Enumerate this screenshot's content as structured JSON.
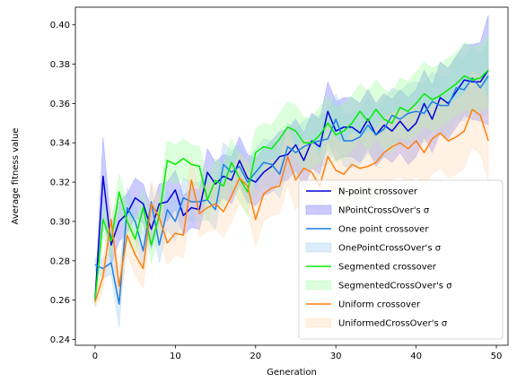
{
  "chart_data": {
    "type": "line",
    "xlabel": "Generation",
    "ylabel": "Average fitness value",
    "xlim": [
      -2.45,
      51.45
    ],
    "ylim": [
      0.237,
      0.409
    ],
    "xticks": [
      0,
      10,
      20,
      30,
      40,
      50
    ],
    "yticks": [
      0.24,
      0.26,
      0.28,
      0.3,
      0.32,
      0.34,
      0.36,
      0.38,
      0.4
    ],
    "ytick_labels": [
      "0.24",
      "0.26",
      "0.28",
      "0.30",
      "0.32",
      "0.34",
      "0.36",
      "0.38",
      "0.40"
    ],
    "xtick_labels": [
      "0",
      "10",
      "20",
      "30",
      "40",
      "50"
    ],
    "grid": false,
    "legend_position": "lower-right",
    "x": [
      0,
      1,
      2,
      3,
      4,
      5,
      6,
      7,
      8,
      9,
      10,
      11,
      12,
      13,
      14,
      15,
      16,
      17,
      18,
      19,
      20,
      21,
      22,
      23,
      24,
      25,
      26,
      27,
      28,
      29,
      30,
      31,
      32,
      33,
      34,
      35,
      36,
      37,
      38,
      39,
      40,
      41,
      42,
      43,
      44,
      45,
      46,
      47,
      48,
      49
    ],
    "series": [
      {
        "name": "N-point crossover",
        "band_name": "NPointCrossOver's σ",
        "color": "#0000dd",
        "band_color": "#6a6aff",
        "values": [
          0.26,
          0.323,
          0.288,
          0.3,
          0.304,
          0.312,
          0.309,
          0.296,
          0.309,
          0.31,
          0.316,
          0.303,
          0.307,
          0.306,
          0.325,
          0.319,
          0.323,
          0.321,
          0.331,
          0.322,
          0.32,
          0.325,
          0.328,
          0.333,
          0.334,
          0.339,
          0.331,
          0.341,
          0.338,
          0.356,
          0.346,
          0.348,
          0.348,
          0.345,
          0.352,
          0.344,
          0.349,
          0.346,
          0.351,
          0.346,
          0.35,
          0.36,
          0.352,
          0.363,
          0.36,
          0.366,
          0.372,
          0.371,
          0.371,
          0.377
        ],
        "sigma": [
          0.003,
          0.02,
          0.01,
          0.01,
          0.01,
          0.01,
          0.01,
          0.01,
          0.01,
          0.01,
          0.01,
          0.01,
          0.01,
          0.01,
          0.012,
          0.011,
          0.011,
          0.012,
          0.012,
          0.012,
          0.012,
          0.012,
          0.013,
          0.013,
          0.013,
          0.013,
          0.014,
          0.014,
          0.014,
          0.015,
          0.015,
          0.015,
          0.015,
          0.015,
          0.015,
          0.016,
          0.016,
          0.016,
          0.016,
          0.017,
          0.017,
          0.017,
          0.017,
          0.018,
          0.018,
          0.018,
          0.018,
          0.019,
          0.02,
          0.028
        ]
      },
      {
        "name": "One point crossover",
        "band_name": "OnePointCrossOver's σ",
        "color": "#1a7fe8",
        "band_color": "#9cc9f0",
        "values": [
          0.278,
          0.276,
          0.279,
          0.258,
          0.307,
          0.3,
          0.285,
          0.31,
          0.288,
          0.306,
          0.3,
          0.312,
          0.31,
          0.31,
          0.311,
          0.306,
          0.329,
          0.325,
          0.328,
          0.32,
          0.325,
          0.33,
          0.329,
          0.324,
          0.338,
          0.335,
          0.338,
          0.34,
          0.341,
          0.342,
          0.352,
          0.341,
          0.341,
          0.343,
          0.349,
          0.344,
          0.347,
          0.354,
          0.352,
          0.355,
          0.356,
          0.355,
          0.361,
          0.359,
          0.359,
          0.368,
          0.367,
          0.373,
          0.368,
          0.374
        ],
        "sigma": [
          0.003,
          0.005,
          0.006,
          0.012,
          0.01,
          0.009,
          0.009,
          0.009,
          0.009,
          0.01,
          0.01,
          0.01,
          0.01,
          0.01,
          0.01,
          0.01,
          0.011,
          0.011,
          0.011,
          0.011,
          0.012,
          0.012,
          0.012,
          0.012,
          0.012,
          0.012,
          0.013,
          0.013,
          0.013,
          0.013,
          0.013,
          0.013,
          0.014,
          0.014,
          0.014,
          0.014,
          0.014,
          0.014,
          0.014,
          0.015,
          0.015,
          0.015,
          0.015,
          0.015,
          0.015,
          0.016,
          0.016,
          0.016,
          0.016,
          0.018
        ]
      },
      {
        "name": "Segmented crossover",
        "band_name": "SegmentedCrossOver's σ",
        "color": "#00ee00",
        "band_color": "#9cff9c",
        "values": [
          0.26,
          0.301,
          0.29,
          0.315,
          0.3,
          0.291,
          0.307,
          0.288,
          0.303,
          0.331,
          0.329,
          0.332,
          0.329,
          0.328,
          0.311,
          0.321,
          0.318,
          0.33,
          0.322,
          0.315,
          0.335,
          0.338,
          0.337,
          0.342,
          0.348,
          0.346,
          0.34,
          0.34,
          0.344,
          0.35,
          0.344,
          0.346,
          0.35,
          0.356,
          0.351,
          0.357,
          0.352,
          0.35,
          0.358,
          0.356,
          0.36,
          0.365,
          0.362,
          0.364,
          0.367,
          0.37,
          0.374,
          0.372,
          0.373,
          0.377
        ],
        "sigma": [
          0.003,
          0.008,
          0.009,
          0.009,
          0.009,
          0.009,
          0.009,
          0.009,
          0.01,
          0.01,
          0.01,
          0.01,
          0.01,
          0.01,
          0.011,
          0.011,
          0.011,
          0.012,
          0.012,
          0.012,
          0.012,
          0.012,
          0.012,
          0.013,
          0.013,
          0.013,
          0.013,
          0.013,
          0.014,
          0.014,
          0.014,
          0.014,
          0.014,
          0.014,
          0.015,
          0.015,
          0.015,
          0.015,
          0.015,
          0.015,
          0.016,
          0.016,
          0.016,
          0.016,
          0.016,
          0.016,
          0.017,
          0.017,
          0.017,
          0.018
        ]
      },
      {
        "name": "Uniform crossover",
        "band_name": "UniformedCrossOver's σ",
        "color": "#ff7f0e",
        "band_color": "#ffd7b0",
        "values": [
          0.259,
          0.272,
          0.301,
          0.267,
          0.293,
          0.283,
          0.276,
          0.309,
          0.302,
          0.289,
          0.294,
          0.293,
          0.321,
          0.304,
          0.307,
          0.309,
          0.305,
          0.313,
          0.322,
          0.318,
          0.301,
          0.314,
          0.317,
          0.318,
          0.333,
          0.321,
          0.327,
          0.325,
          0.318,
          0.333,
          0.326,
          0.324,
          0.329,
          0.327,
          0.328,
          0.33,
          0.335,
          0.338,
          0.34,
          0.337,
          0.341,
          0.335,
          0.342,
          0.345,
          0.341,
          0.343,
          0.346,
          0.357,
          0.354,
          0.341
        ],
        "sigma": [
          0.003,
          0.008,
          0.009,
          0.01,
          0.01,
          0.01,
          0.01,
          0.011,
          0.011,
          0.011,
          0.011,
          0.012,
          0.012,
          0.012,
          0.012,
          0.013,
          0.013,
          0.013,
          0.013,
          0.013,
          0.014,
          0.014,
          0.014,
          0.014,
          0.015,
          0.015,
          0.015,
          0.015,
          0.015,
          0.016,
          0.016,
          0.016,
          0.016,
          0.016,
          0.017,
          0.017,
          0.017,
          0.017,
          0.017,
          0.018,
          0.018,
          0.018,
          0.018,
          0.018,
          0.019,
          0.019,
          0.019,
          0.019,
          0.02,
          0.02
        ]
      }
    ]
  }
}
